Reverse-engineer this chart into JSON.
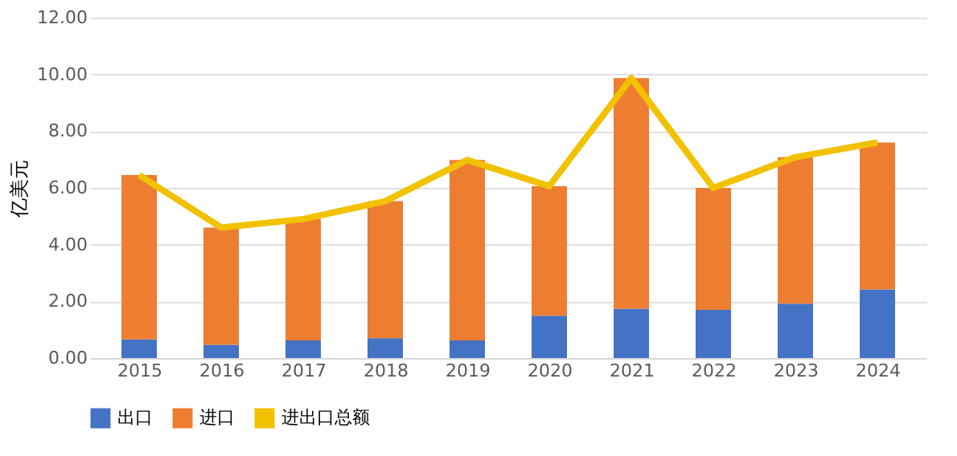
{
  "chart_data": {
    "type": "bar",
    "stacked": true,
    "ylabel": "亿美元",
    "categories": [
      "2015",
      "2016",
      "2017",
      "2018",
      "2019",
      "2020",
      "2021",
      "2022",
      "2023",
      "2024"
    ],
    "series": [
      {
        "name": "出口",
        "color": "#4472c4",
        "values": [
          0.66,
          0.47,
          0.62,
          0.7,
          0.62,
          1.49,
          1.74,
          1.7,
          1.92,
          2.42
        ]
      },
      {
        "name": "进口",
        "color": "#ed7d31",
        "values": [
          5.79,
          4.13,
          4.28,
          4.83,
          6.36,
          4.57,
          8.13,
          4.3,
          5.16,
          5.18
        ]
      },
      {
        "name": "进出口总额",
        "type": "line",
        "color": "#f2c100",
        "values": [
          6.45,
          4.6,
          4.9,
          5.53,
          6.98,
          6.06,
          9.87,
          6.0,
          7.08,
          7.6
        ]
      }
    ],
    "ylim": [
      0,
      12
    ],
    "yticks": [
      {
        "value": 0,
        "label": "0.00"
      },
      {
        "value": 2,
        "label": "2.00"
      },
      {
        "value": 4,
        "label": "4.00"
      },
      {
        "value": 6,
        "label": "6.00"
      },
      {
        "value": 8,
        "label": "8.00"
      },
      {
        "value": 10,
        "label": "10.00"
      },
      {
        "value": 12,
        "label": "12.00"
      }
    ],
    "grid": "y",
    "legend": "bottom",
    "marker": "none"
  }
}
